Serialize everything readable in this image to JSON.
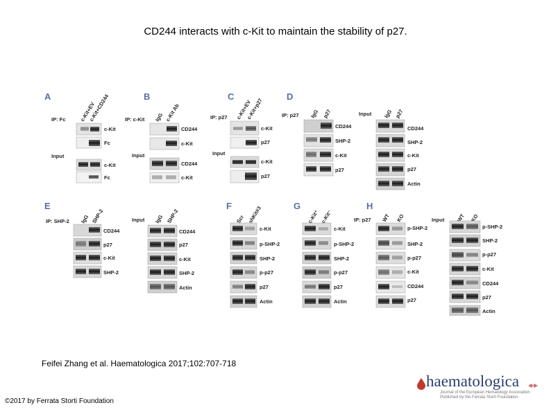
{
  "slide": {
    "title": "CD244 interacts with c-Kit to maintain the stability of p27.",
    "citation": "Feifei Zhang et al. Haematologica 2017;102:707-718",
    "copyright": "©2017 by Ferrata Storti Foundation"
  },
  "logo": {
    "wordmark": "haematologica",
    "tagline_1": "Journal of the European Hematology Association",
    "tagline_2": "Published by the Ferrata Storti Foundation"
  },
  "figure": {
    "panels": {
      "A": {
        "letter": "A",
        "ip": "IP: Fc",
        "input": "Input",
        "lanes": [
          "c-Kit+EV",
          "c-Kit+CD244"
        ],
        "rows": [
          "c-Kit",
          "Fc",
          "c-Kit",
          "Fc"
        ]
      },
      "B": {
        "letter": "B",
        "ip": "IP: c-Kit",
        "input": "Input",
        "lanes": [
          "IgG",
          "c-Kit Ab"
        ],
        "rows": [
          "CD244",
          "c-Kit",
          "CD244",
          "c-Kit"
        ]
      },
      "C": {
        "letter": "C",
        "ip": "IP: p27",
        "input": "Input",
        "lanes": [
          "c-Kit+EV",
          "c-Kit+p27"
        ],
        "rows": [
          "c-Kit",
          "p27",
          "c-Kit",
          "p27"
        ]
      },
      "D": {
        "letter": "D",
        "ip": "IP: p27",
        "input": "Input",
        "lanes": [
          "IgG",
          "p27"
        ],
        "rows_ip": [
          "CD244",
          "SHP-2",
          "c-Kit",
          "p27"
        ],
        "input_lanes": [
          "IgG",
          "p27"
        ],
        "rows_input": [
          "CD244",
          "SHP-2",
          "c-Kit",
          "p27",
          "Actin"
        ]
      },
      "E": {
        "letter": "E",
        "ip": "IP: SHP-2",
        "input": "Input",
        "lanes": [
          "IgG",
          "SHP-2"
        ],
        "rows_ip": [
          "CD244",
          "p27",
          "c-Kit",
          "SHP-2"
        ],
        "input_lanes": [
          "IgG",
          "SHP-2"
        ],
        "rows_input": [
          "CD244",
          "p27",
          "c-Kit",
          "SHP-2",
          "Actin"
        ]
      },
      "F": {
        "letter": "F",
        "lanes": [
          "Scr",
          "shKit#3"
        ],
        "rows": [
          "c-Kit",
          "p-SHP-2",
          "SHP-2",
          "p-p27",
          "p27",
          "Actin"
        ]
      },
      "G": {
        "letter": "G",
        "lanes": [
          "c-Kit⁺",
          "c-Kit⁻"
        ],
        "rows": [
          "c-Kit",
          "p-SHP-2",
          "SHP-2",
          "p-p27",
          "p27",
          "Actin"
        ]
      },
      "H": {
        "letter": "H",
        "ip": "IP: p27",
        "input": "Input",
        "lanes": [
          "WT",
          "KO"
        ],
        "rows_ip": [
          "p-SHP-2",
          "SHP-2",
          "p-p27",
          "c-Kit",
          "CD244",
          "p27"
        ],
        "input_lanes": [
          "WT",
          "KO"
        ],
        "rows_input": [
          "p-SHP-2",
          "SHP-2",
          "p-p27",
          "c-Kit",
          "CD244",
          "p27",
          "Actin"
        ]
      }
    }
  }
}
